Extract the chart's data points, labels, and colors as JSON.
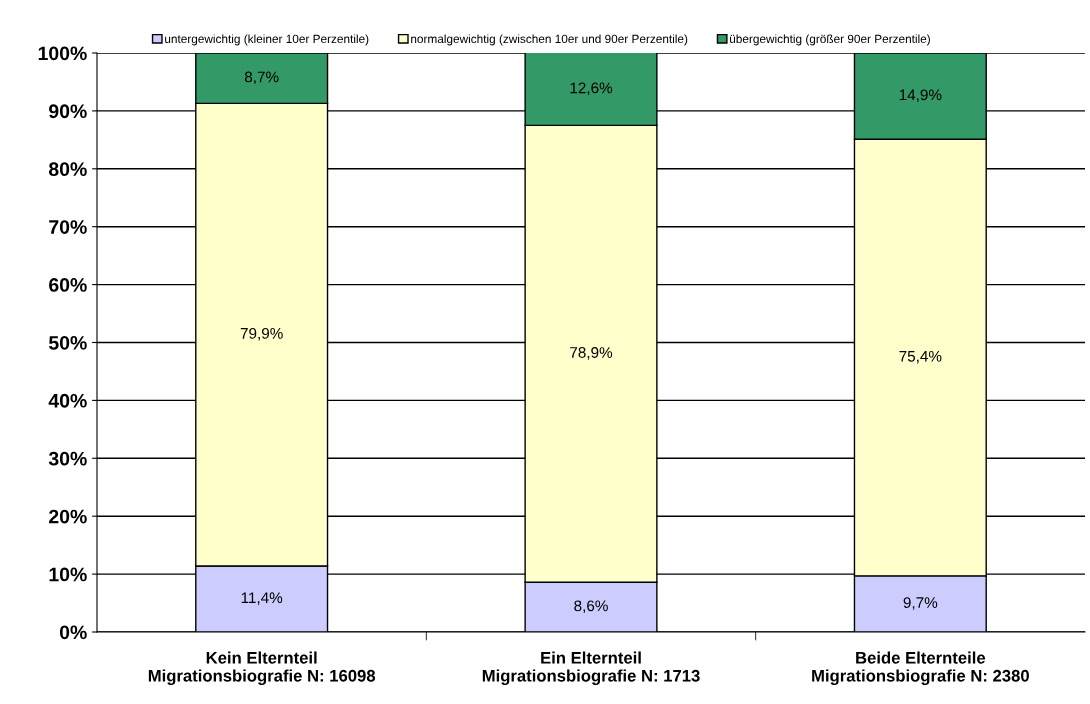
{
  "chart_data": {
    "type": "bar",
    "stacked": true,
    "categories": [
      "Kein Elternteil\nMigrationsbiografie N: 16098",
      "Ein Elternteil\nMigrationsbiografie N: 1713",
      "Beide Elternteile\nMigrationsbiografie N: 2380"
    ],
    "series": [
      {
        "name": "untergewichtig (kleiner 10er Perzentile)",
        "color": "#ccccff",
        "values": [
          11.4,
          8.6,
          9.7
        ],
        "value_labels": [
          "11,4%",
          "8,6%",
          "9,7%"
        ]
      },
      {
        "name": "normalgewichtig (zwischen 10er und 90er Perzentile)",
        "color": "#ffffcc",
        "values": [
          79.9,
          78.9,
          75.4
        ],
        "value_labels": [
          "79,9%",
          "78,9%",
          "75,4%"
        ]
      },
      {
        "name": "übergewichtig (größer 90er Perzentile)",
        "color": "#339966",
        "values": [
          8.7,
          12.6,
          14.9
        ],
        "value_labels": [
          "8,7%",
          "12,6%",
          "14,9%"
        ]
      }
    ],
    "ylim": [
      0,
      100
    ],
    "yticks": [
      {
        "value": 0,
        "label": "0%"
      },
      {
        "value": 10,
        "label": "10%"
      },
      {
        "value": 20,
        "label": "20%"
      },
      {
        "value": 30,
        "label": "30%"
      },
      {
        "value": 40,
        "label": "40%"
      },
      {
        "value": 50,
        "label": "50%"
      },
      {
        "value": 60,
        "label": "60%"
      },
      {
        "value": 70,
        "label": "70%"
      },
      {
        "value": 80,
        "label": "80%"
      },
      {
        "value": 90,
        "label": "90%"
      },
      {
        "value": 100,
        "label": "100%"
      }
    ],
    "grid": "y",
    "legend": "top"
  }
}
